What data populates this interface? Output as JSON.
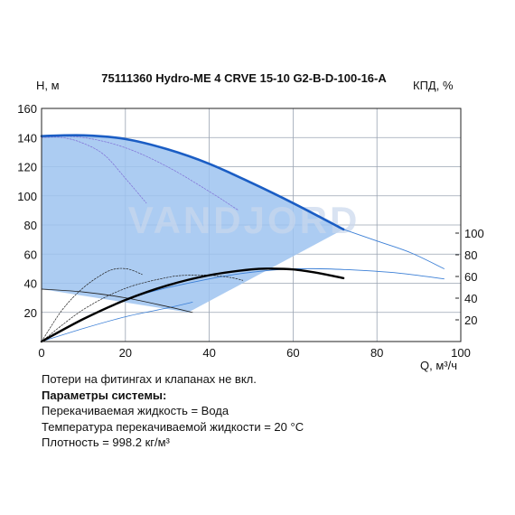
{
  "chart_data": {
    "type": "line",
    "title": "75111360 Hydro-ME 4 CRVE 15-10 G2-B-D-100-16-A",
    "ylabel_left": "H, м",
    "ylabel_right": "КПД, %",
    "xlabel": "Q, м³/ч",
    "xlim": [
      0,
      100
    ],
    "ylim_left": [
      0,
      160
    ],
    "ylim_right": [
      0,
      100
    ],
    "x_ticks": [
      0,
      20,
      40,
      60,
      80,
      100
    ],
    "y_ticks_left": [
      20,
      40,
      60,
      80,
      100,
      120,
      140,
      160
    ],
    "y_ticks_right": [
      20,
      40,
      60,
      80,
      100
    ],
    "grid": true,
    "watermark": "VANDJORD",
    "operating_area": {
      "upper_edge": [
        [
          0,
          141
        ],
        [
          10,
          141.5
        ],
        [
          20,
          139
        ],
        [
          30,
          132
        ],
        [
          40,
          122
        ],
        [
          50,
          109
        ],
        [
          60,
          95
        ],
        [
          72,
          77
        ]
      ],
      "lower_edge": [
        [
          72,
          77
        ],
        [
          35,
          20
        ],
        [
          0,
          36
        ]
      ]
    },
    "series": [
      {
        "role": "head_max_speed",
        "points": [
          [
            0,
            141
          ],
          [
            10,
            141.5
          ],
          [
            20,
            139
          ],
          [
            30,
            132
          ],
          [
            40,
            122
          ],
          [
            50,
            109
          ],
          [
            60,
            95
          ],
          [
            72,
            77
          ]
        ]
      },
      {
        "role": "head_extended",
        "points": [
          [
            72,
            77
          ],
          [
            80,
            69
          ],
          [
            88,
            61
          ],
          [
            96,
            50
          ]
        ]
      },
      {
        "role": "head_reduced_1",
        "points": [
          [
            0,
            141
          ],
          [
            10,
            140
          ],
          [
            20,
            133
          ],
          [
            30,
            120
          ],
          [
            40,
            103
          ],
          [
            47,
            90
          ]
        ]
      },
      {
        "role": "head_reduced_2",
        "points": [
          [
            0,
            140
          ],
          [
            5,
            140
          ],
          [
            10,
            136
          ],
          [
            15,
            128
          ],
          [
            20,
            112
          ],
          [
            25,
            95
          ]
        ]
      },
      {
        "role": "head_reduced_3",
        "points": [
          [
            0,
            36
          ],
          [
            10,
            34
          ],
          [
            20,
            30
          ],
          [
            30,
            24
          ],
          [
            36,
            20
          ]
        ]
      },
      {
        "role": "efficiency_max_speed",
        "points": [
          [
            0,
            0
          ],
          [
            10,
            15.5
          ],
          [
            20,
            28.5
          ],
          [
            30,
            38.5
          ],
          [
            40,
            45.5
          ],
          [
            50,
            49.5
          ],
          [
            55,
            50
          ],
          [
            60,
            49.5
          ],
          [
            66,
            47
          ],
          [
            72,
            43.5
          ]
        ]
      },
      {
        "role": "efficiency_reduced_1",
        "points": [
          [
            0,
            0
          ],
          [
            10,
            22
          ],
          [
            20,
            36.5
          ],
          [
            30,
            44
          ],
          [
            35,
            45.5
          ],
          [
            40,
            45.5
          ],
          [
            45,
            44
          ],
          [
            48,
            42
          ]
        ]
      },
      {
        "role": "efficiency_reduced_2",
        "points": [
          [
            0,
            0
          ],
          [
            5,
            22
          ],
          [
            10,
            37
          ],
          [
            15,
            47
          ],
          [
            18,
            50
          ],
          [
            21,
            49.5
          ],
          [
            24,
            46
          ]
        ]
      },
      {
        "role": "efficiency_extended",
        "points": [
          [
            0,
            0
          ],
          [
            20,
            28.5
          ],
          [
            40,
            43
          ],
          [
            55,
            49
          ],
          [
            65,
            50
          ],
          [
            75,
            49
          ],
          [
            85,
            47
          ],
          [
            96,
            43
          ]
        ]
      },
      {
        "role": "efficiency_low",
        "points": [
          [
            0,
            0
          ],
          [
            10,
            9
          ],
          [
            20,
            17
          ],
          [
            30,
            23
          ],
          [
            36,
            27
          ]
        ]
      }
    ]
  },
  "notes": {
    "line1": "Потери на фитингах и клапанах не вкл.",
    "line2": "Параметры системы:",
    "line3": "Перекачиваемая жидкость = Вода",
    "line4": "Температура перекачиваемой жидкости = 20 °C",
    "line5": "Плотность = 998.2 кг/м³"
  },
  "colors": {
    "area_fill": "#9ec3f0",
    "head_line": "#1a5dc4",
    "efficiency_line": "#000000",
    "aux_curve": "#3b7fd6",
    "grid": "#9aa4b2",
    "watermark": "#c9d7ec"
  }
}
